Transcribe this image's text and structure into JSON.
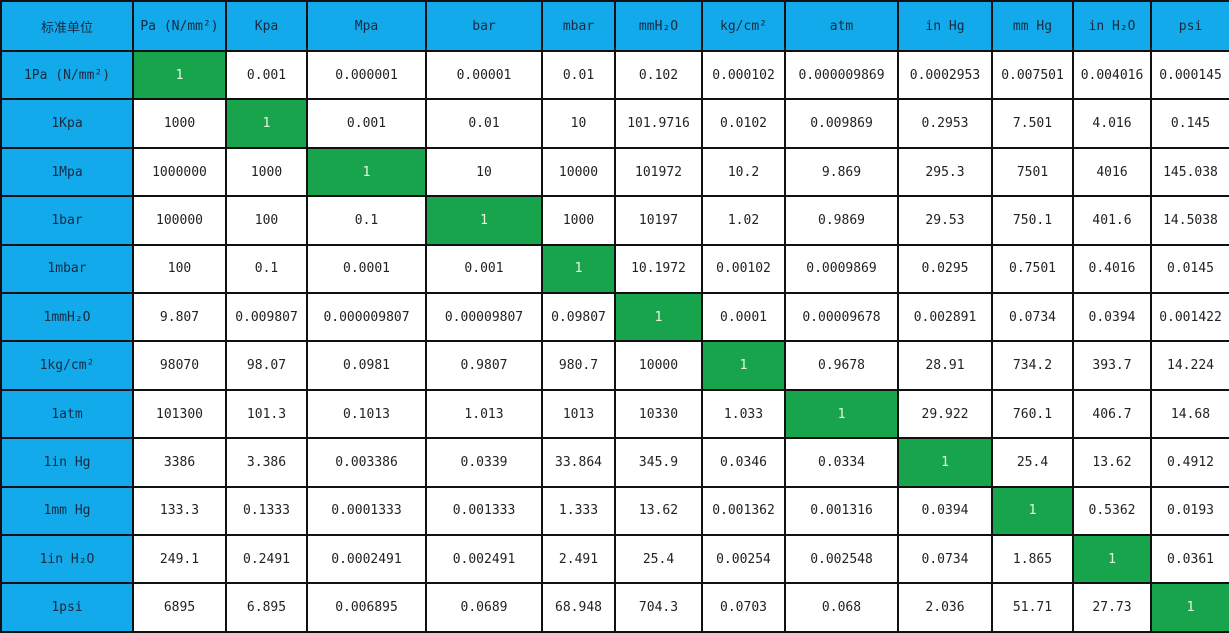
{
  "colors": {
    "header": "#12aaea",
    "diagonal": "#18a44c"
  },
  "table": {
    "corner": "标准单位",
    "headers": [
      "Pa (N/mm²)",
      "Kpa",
      "Mpa",
      "bar",
      "mbar",
      "mmH₂O",
      "kg/cm²",
      "atm",
      "in Hg",
      "mm Hg",
      "in H₂O",
      "psi"
    ],
    "rows": [
      {
        "label": "1Pa (N/mm²)",
        "values": [
          "1",
          "0.001",
          "0.000001",
          "0.00001",
          "0.01",
          "0.102",
          "0.000102",
          "0.000009869",
          "0.0002953",
          "0.007501",
          "0.004016",
          "0.000145"
        ]
      },
      {
        "label": "1Kpa",
        "values": [
          "1000",
          "1",
          "0.001",
          "0.01",
          "10",
          "101.9716",
          "0.0102",
          "0.009869",
          "0.2953",
          "7.501",
          "4.016",
          "0.145"
        ]
      },
      {
        "label": "1Mpa",
        "values": [
          "1000000",
          "1000",
          "1",
          "10",
          "10000",
          "101972",
          "10.2",
          "9.869",
          "295.3",
          "7501",
          "4016",
          "145.038"
        ]
      },
      {
        "label": "1bar",
        "values": [
          "100000",
          "100",
          "0.1",
          "1",
          "1000",
          "10197",
          "1.02",
          "0.9869",
          "29.53",
          "750.1",
          "401.6",
          "14.5038"
        ]
      },
      {
        "label": "1mbar",
        "values": [
          "100",
          "0.1",
          "0.0001",
          "0.001",
          "1",
          "10.1972",
          "0.00102",
          "0.0009869",
          "0.0295",
          "0.7501",
          "0.4016",
          "0.0145"
        ]
      },
      {
        "label": "1mmH₂O",
        "values": [
          "9.807",
          "0.009807",
          "0.000009807",
          "0.00009807",
          "0.09807",
          "1",
          "0.0001",
          "0.00009678",
          "0.002891",
          "0.0734",
          "0.0394",
          "0.001422"
        ]
      },
      {
        "label": "1kg/cm²",
        "values": [
          "98070",
          "98.07",
          "0.0981",
          "0.9807",
          "980.7",
          "10000",
          "1",
          "0.9678",
          "28.91",
          "734.2",
          "393.7",
          "14.224"
        ]
      },
      {
        "label": "1atm",
        "values": [
          "101300",
          "101.3",
          "0.1013",
          "1.013",
          "1013",
          "10330",
          "1.033",
          "1",
          "29.922",
          "760.1",
          "406.7",
          "14.68"
        ]
      },
      {
        "label": "1in Hg",
        "values": [
          "3386",
          "3.386",
          "0.003386",
          "0.0339",
          "33.864",
          "345.9",
          "0.0346",
          "0.0334",
          "1",
          "25.4",
          "13.62",
          "0.4912"
        ]
      },
      {
        "label": "1mm Hg",
        "values": [
          "133.3",
          "0.1333",
          "0.0001333",
          "0.001333",
          "1.333",
          "13.62",
          "0.001362",
          "0.001316",
          "0.0394",
          "1",
          "0.5362",
          "0.0193"
        ]
      },
      {
        "label": "1in H₂O",
        "values": [
          "249.1",
          "0.2491",
          "0.0002491",
          "0.002491",
          "2.491",
          "25.4",
          "0.00254",
          "0.002548",
          "0.0734",
          "1.865",
          "1",
          "0.0361"
        ]
      },
      {
        "label": "1psi",
        "values": [
          "6895",
          "6.895",
          "0.006895",
          "0.0689",
          "68.948",
          "704.3",
          "0.0703",
          "0.068",
          "2.036",
          "51.71",
          "27.73",
          "1"
        ]
      }
    ]
  }
}
